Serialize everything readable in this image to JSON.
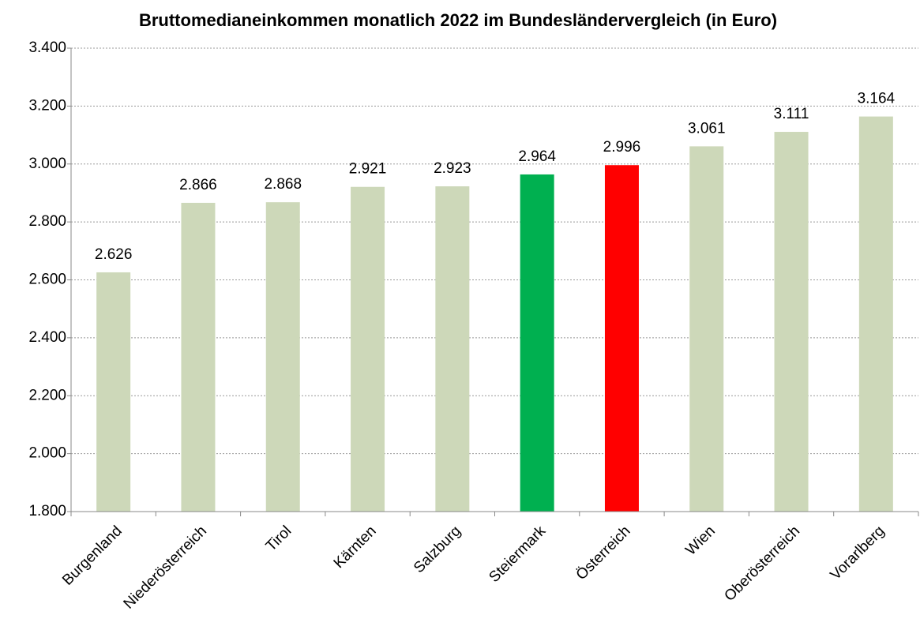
{
  "chart_data": {
    "type": "bar",
    "title": "Bruttomedianeinkommen monatlich 2022 im Bundesländervergleich (in Euro)",
    "categories": [
      "Burgenland",
      "Niederösterreich",
      "Tirol",
      "Kärnten",
      "Salzburg",
      "Steiermark",
      "Österreich",
      "Wien",
      "Oberösterreich",
      "Vorarlberg"
    ],
    "values": [
      2626,
      2866,
      2868,
      2921,
      2923,
      2964,
      2996,
      3061,
      3111,
      3164
    ],
    "value_labels": [
      "2.626",
      "2.866",
      "2.868",
      "2.921",
      "2.923",
      "2.964",
      "2.996",
      "3.061",
      "3.111",
      "3.164"
    ],
    "colors": [
      "#cdd8b9",
      "#cdd8b9",
      "#cdd8b9",
      "#cdd8b9",
      "#cdd8b9",
      "#00b050",
      "#ff0000",
      "#cdd8b9",
      "#cdd8b9",
      "#cdd8b9"
    ],
    "ylim": [
      1800,
      3400
    ],
    "yticks": [
      {
        "value": 1800,
        "label": "1.800"
      },
      {
        "value": 2000,
        "label": "2.000"
      },
      {
        "value": 2200,
        "label": "2.200"
      },
      {
        "value": 2400,
        "label": "2.400"
      },
      {
        "value": 2600,
        "label": "2.600"
      },
      {
        "value": 2800,
        "label": "2.800"
      },
      {
        "value": 3000,
        "label": "3.000"
      },
      {
        "value": 3200,
        "label": "3.200"
      },
      {
        "value": 3400,
        "label": "3.400"
      }
    ],
    "grid": true
  }
}
